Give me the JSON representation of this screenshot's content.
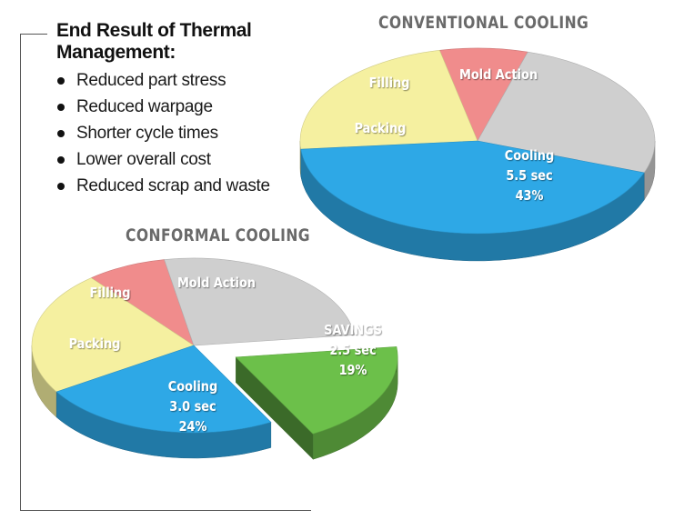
{
  "panel": {
    "title": "End Result of Thermal Management:",
    "bullets": [
      "Reduced part stress",
      "Reduced warpage",
      "Shorter cycle times",
      "Lower overall cost",
      "Reduced scrap and waste"
    ]
  },
  "chart_data": [
    {
      "type": "pie",
      "title": "CONVENTIONAL COOLING",
      "slices": [
        {
          "label": "Cooling",
          "lines": [
            "Cooling",
            "5.5 sec",
            "43%"
          ],
          "value": 43,
          "color": "#2ea8e6"
        },
        {
          "label": "Packing",
          "lines": [
            "Packing"
          ],
          "value": 23,
          "color": "#f5f0a0"
        },
        {
          "label": "Filling",
          "lines": [
            "Filling"
          ],
          "value": 8,
          "color": "#f08c8c"
        },
        {
          "label": "Mold Action",
          "lines": [
            "Mold Action"
          ],
          "value": 26,
          "color": "#cfcfcf"
        }
      ]
    },
    {
      "type": "pie",
      "title": "CONFORMAL COOLING",
      "slices": [
        {
          "label": "SAVINGS",
          "lines": [
            "SAVINGS",
            "2.5 sec",
            "19%"
          ],
          "value": 19,
          "color": "#6cc04a",
          "exploded": true
        },
        {
          "label": "Cooling",
          "lines": [
            "Cooling",
            "3.0 sec",
            "24%"
          ],
          "value": 24,
          "color": "#2ea8e6"
        },
        {
          "label": "Packing",
          "lines": [
            "Packing"
          ],
          "value": 23,
          "color": "#f5f0a0"
        },
        {
          "label": "Filling",
          "lines": [
            "Filling"
          ],
          "value": 8,
          "color": "#f08c8c"
        },
        {
          "label": "Mold Action",
          "lines": [
            "Mold Action"
          ],
          "value": 26,
          "color": "#cfcfcf"
        }
      ]
    }
  ]
}
